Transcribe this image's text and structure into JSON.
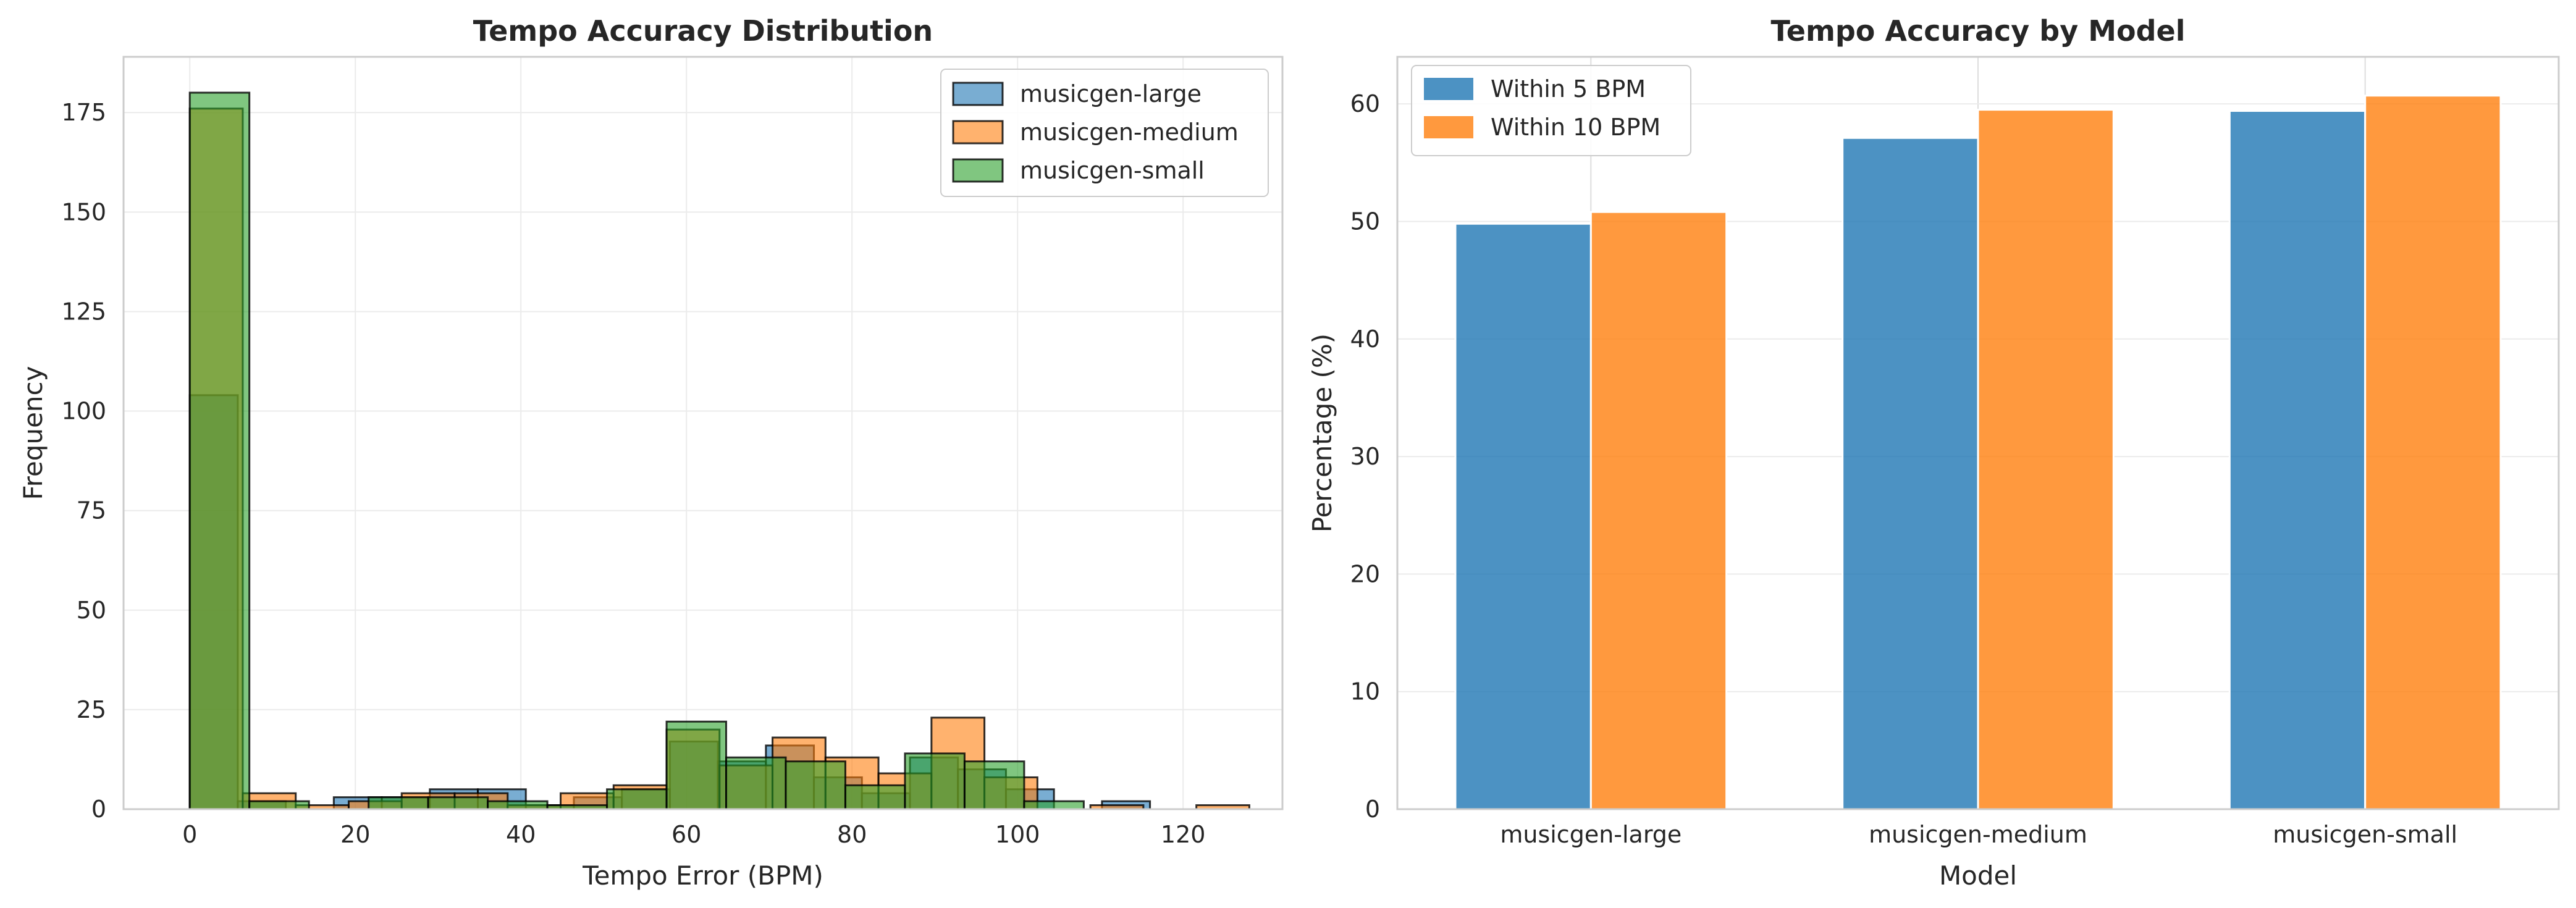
{
  "chart_data": [
    {
      "type": "histogram",
      "title": "Tempo Accuracy Distribution",
      "xlabel": "Tempo Error (BPM)",
      "ylabel": "Frequency",
      "xlim": [
        -8,
        132
      ],
      "ylim": [
        0,
        189
      ],
      "xticks": [
        0,
        20,
        40,
        60,
        80,
        100,
        120
      ],
      "yticks": [
        0,
        25,
        50,
        75,
        100,
        125,
        150,
        175
      ],
      "grid": true,
      "legend_position": "top-right",
      "series": [
        {
          "name": "musicgen-large",
          "color": "#1f77b4",
          "bins": [
            {
              "x0": 0.0,
              "x1": 5.8,
              "count": 104
            },
            {
              "x0": 5.8,
              "x1": 11.6,
              "count": 2
            },
            {
              "x0": 17.4,
              "x1": 23.2,
              "count": 3
            },
            {
              "x0": 23.2,
              "x1": 29.0,
              "count": 3
            },
            {
              "x0": 29.0,
              "x1": 34.8,
              "count": 5
            },
            {
              "x0": 34.8,
              "x1": 40.6,
              "count": 5
            },
            {
              "x0": 40.6,
              "x1": 46.4,
              "count": 1
            },
            {
              "x0": 46.4,
              "x1": 52.2,
              "count": 3
            },
            {
              "x0": 52.2,
              "x1": 58.0,
              "count": 5
            },
            {
              "x0": 58.0,
              "x1": 63.8,
              "count": 17
            },
            {
              "x0": 63.8,
              "x1": 69.6,
              "count": 12
            },
            {
              "x0": 69.6,
              "x1": 75.4,
              "count": 16
            },
            {
              "x0": 75.4,
              "x1": 81.2,
              "count": 8
            },
            {
              "x0": 81.2,
              "x1": 87.0,
              "count": 4
            },
            {
              "x0": 87.0,
              "x1": 92.8,
              "count": 13
            },
            {
              "x0": 92.8,
              "x1": 98.6,
              "count": 10
            },
            {
              "x0": 98.6,
              "x1": 104.4,
              "count": 5
            },
            {
              "x0": 110.2,
              "x1": 116.0,
              "count": 2
            }
          ]
        },
        {
          "name": "musicgen-medium",
          "color": "#ff7f0e",
          "bins": [
            {
              "x0": 0.0,
              "x1": 6.4,
              "count": 176
            },
            {
              "x0": 6.4,
              "x1": 12.8,
              "count": 4
            },
            {
              "x0": 12.8,
              "x1": 19.2,
              "count": 1
            },
            {
              "x0": 19.2,
              "x1": 25.6,
              "count": 2
            },
            {
              "x0": 25.6,
              "x1": 32.0,
              "count": 4
            },
            {
              "x0": 32.0,
              "x1": 38.4,
              "count": 4
            },
            {
              "x0": 38.4,
              "x1": 44.8,
              "count": 1
            },
            {
              "x0": 44.8,
              "x1": 51.2,
              "count": 4
            },
            {
              "x0": 51.2,
              "x1": 57.6,
              "count": 6
            },
            {
              "x0": 57.6,
              "x1": 64.0,
              "count": 20
            },
            {
              "x0": 64.0,
              "x1": 70.4,
              "count": 11
            },
            {
              "x0": 70.4,
              "x1": 76.8,
              "count": 18
            },
            {
              "x0": 76.8,
              "x1": 83.2,
              "count": 13
            },
            {
              "x0": 83.2,
              "x1": 89.6,
              "count": 9
            },
            {
              "x0": 89.6,
              "x1": 96.0,
              "count": 23
            },
            {
              "x0": 96.0,
              "x1": 102.4,
              "count": 8
            },
            {
              "x0": 108.8,
              "x1": 115.2,
              "count": 1
            },
            {
              "x0": 121.6,
              "x1": 128.0,
              "count": 1
            }
          ]
        },
        {
          "name": "musicgen-small",
          "color": "#2ca02c",
          "bins": [
            {
              "x0": 0.0,
              "x1": 7.2,
              "count": 180
            },
            {
              "x0": 7.2,
              "x1": 14.4,
              "count": 2
            },
            {
              "x0": 21.6,
              "x1": 28.8,
              "count": 3
            },
            {
              "x0": 28.8,
              "x1": 36.0,
              "count": 3
            },
            {
              "x0": 36.0,
              "x1": 43.2,
              "count": 2
            },
            {
              "x0": 43.2,
              "x1": 50.4,
              "count": 1
            },
            {
              "x0": 50.4,
              "x1": 57.6,
              "count": 5
            },
            {
              "x0": 57.6,
              "x1": 64.8,
              "count": 22
            },
            {
              "x0": 64.8,
              "x1": 72.0,
              "count": 13
            },
            {
              "x0": 72.0,
              "x1": 79.2,
              "count": 12
            },
            {
              "x0": 79.2,
              "x1": 86.4,
              "count": 6
            },
            {
              "x0": 86.4,
              "x1": 93.6,
              "count": 14
            },
            {
              "x0": 93.6,
              "x1": 100.8,
              "count": 12
            },
            {
              "x0": 100.8,
              "x1": 108.0,
              "count": 2
            }
          ]
        }
      ]
    },
    {
      "type": "bar",
      "title": "Tempo Accuracy by Model",
      "xlabel": "Model",
      "ylabel": "Percentage (%)",
      "ylim": [
        0,
        64
      ],
      "yticks": [
        0,
        10,
        20,
        30,
        40,
        50,
        60
      ],
      "grid": true,
      "legend_position": "top-left",
      "categories": [
        "musicgen-large",
        "musicgen-medium",
        "musicgen-small"
      ],
      "series": [
        {
          "name": "Within 5 BPM",
          "color": "#1f77b4",
          "values": [
            49.8,
            57.1,
            59.4
          ]
        },
        {
          "name": "Within 10 BPM",
          "color": "#ff7f0e",
          "values": [
            50.8,
            59.5,
            60.7
          ]
        }
      ]
    }
  ]
}
